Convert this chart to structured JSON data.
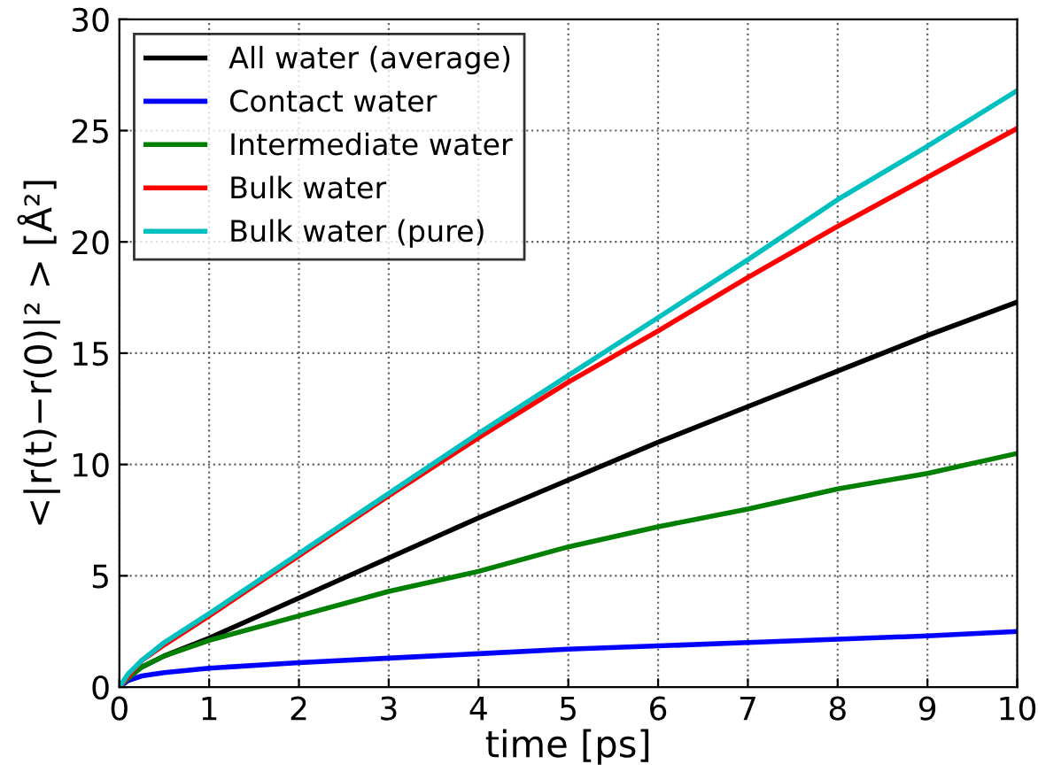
{
  "chart_data": {
    "type": "line",
    "xlabel": "time [ps]",
    "ylabel": "<|r(t)−r(0)|² > [Å²]",
    "xlim": [
      0,
      10
    ],
    "ylim": [
      0,
      30
    ],
    "xticks": [
      0,
      1,
      2,
      3,
      4,
      5,
      6,
      7,
      8,
      9,
      10
    ],
    "yticks": [
      0,
      5,
      10,
      15,
      20,
      25,
      30
    ],
    "grid": true,
    "legend": "top left",
    "marker": "none",
    "line_style": "solid",
    "x": [
      0,
      0.1,
      0.25,
      0.5,
      1,
      2,
      3,
      4,
      5,
      6,
      7,
      8,
      9,
      10
    ],
    "series": [
      {
        "name": "All water (average)",
        "color": "#000000",
        "values": [
          0,
          0.5,
          0.9,
          1.4,
          2.2,
          4.0,
          5.8,
          7.6,
          9.3,
          11.0,
          12.6,
          14.2,
          15.8,
          17.3
        ]
      },
      {
        "name": "Contact water",
        "color": "#0000ff",
        "values": [
          0,
          0.3,
          0.5,
          0.65,
          0.85,
          1.1,
          1.3,
          1.5,
          1.7,
          1.85,
          2.0,
          2.15,
          2.3,
          2.5
        ]
      },
      {
        "name": "Intermediate water",
        "color": "#008000",
        "values": [
          0,
          0.4,
          0.9,
          1.4,
          2.1,
          3.2,
          4.3,
          5.2,
          6.3,
          7.2,
          8.0,
          8.9,
          9.6,
          10.5
        ]
      },
      {
        "name": "Bulk water",
        "color": "#ff0000",
        "x": [
          0,
          0.25,
          0.5,
          1,
          2,
          3,
          4,
          5,
          6,
          7,
          8,
          9,
          10
        ],
        "values": [
          0,
          1.2,
          1.9,
          3.2,
          5.9,
          8.6,
          11.2,
          13.7,
          16.0,
          18.4,
          20.7,
          22.9,
          25.1
        ]
      },
      {
        "name": "Bulk water (pure)",
        "color": "#00bfbf",
        "values": [
          0,
          0.6,
          1.2,
          2.0,
          3.3,
          6.0,
          8.7,
          11.4,
          14.0,
          16.6,
          19.2,
          21.9,
          24.3,
          26.8
        ]
      }
    ]
  }
}
